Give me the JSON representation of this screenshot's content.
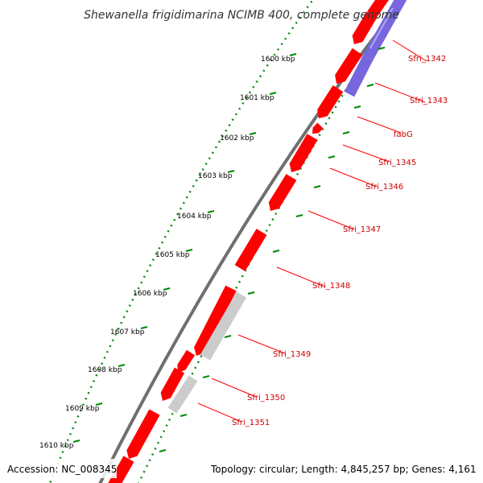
{
  "title": "Shewanella frigidimarina NCIMB 400, complete genome",
  "footer": {
    "accession": "Accession: NC_008345",
    "summary": "Topology: circular; Length: 4,845,257 bp; Genes: 4,161"
  },
  "colors": {
    "backbone": "#777777",
    "gene_forward": "#ff0000",
    "gene_reverse": "#ff0000",
    "gene_other": "#cccccc",
    "gene_blue": "#7766dd",
    "tick": "#008800",
    "label": "#cc0000",
    "leader": "#ff0000"
  },
  "scale_labels": [
    "1600 kbp",
    "1601 kbp",
    "1602 kbp",
    "1603 kbp",
    "1604 kbp",
    "1605 kbp",
    "1606 kbp",
    "1607 kbp",
    "1608 kbp",
    "1609 kbp",
    "1610 kbp"
  ],
  "gene_labels": [
    "Sfri_1342",
    "Sfri_1343",
    "fabG",
    "Sfri_1345",
    "Sfri_1346",
    "Sfri_1347",
    "Sfri_1348",
    "Sfri_1349",
    "Sfri_1350",
    "Sfri_1351"
  ]
}
